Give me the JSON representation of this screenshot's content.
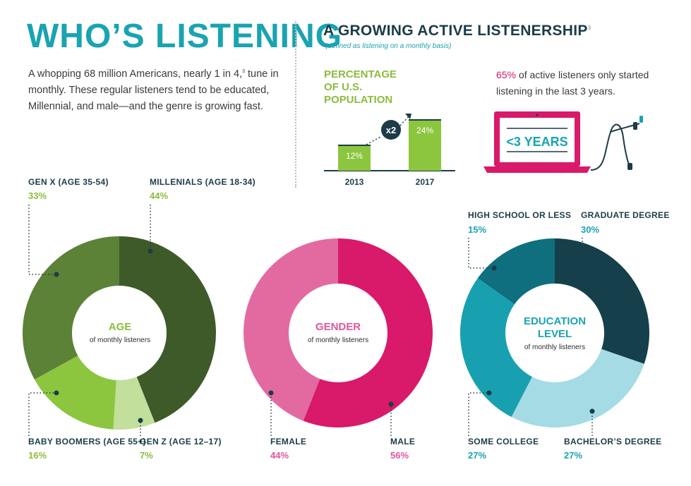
{
  "header": {
    "title": "WHO’S LISTENING",
    "intro_part1": "A whopping 68 million Americans, nearly 1 in 4,",
    "intro_sup": "3",
    "intro_part2": " tune in monthly. These regular listeners tend to be educated, Millennial, and male—and the genre is growing fast."
  },
  "growth": {
    "title": "A GROWING ACTIVE LISTENERSHIP",
    "title_sup": "3",
    "subtitle": "(defined as listening on a monthly basis)",
    "chart_title": "PERCENTAGE OF U.S. POPULATION",
    "multiplier": "x2",
    "listeners_pct": "65%",
    "listeners_text": " of active listeners only started listening in the last 3 years.",
    "laptop_text": "<3 YEARS"
  },
  "colors": {
    "teal": "#1aa3b1",
    "navy": "#1c3c48",
    "green_accent": "#8cbc3e",
    "pink": "#d9196a"
  },
  "chart_data": [
    {
      "type": "bar",
      "title": "PERCENTAGE OF U.S. POPULATION",
      "categories": [
        "2013",
        "2017"
      ],
      "values": [
        12,
        24
      ],
      "labels": [
        "12%",
        "24%"
      ],
      "annotation": "x2",
      "color": "#8cc63f"
    },
    {
      "type": "pie",
      "title": "AGE",
      "subtitle": "of monthly listeners",
      "title_color": "#8cbc3e",
      "slices": [
        {
          "label": "MILLENIALS (AGE 18-34)",
          "value": 44,
          "display": "44%",
          "color": "#3e5a29"
        },
        {
          "label": "GEN Z (AGE 12–17)",
          "value": 7,
          "display": "7%",
          "color": "#c2df9b"
        },
        {
          "label": "BABY BOOMERS (AGE 55+)",
          "value": 16,
          "display": "16%",
          "color": "#8cc63f"
        },
        {
          "label": "GEN X (AGE 35-54)",
          "value": 33,
          "display": "33%",
          "color": "#5b8237"
        }
      ],
      "value_color": "#8cbc3e"
    },
    {
      "type": "pie",
      "title": "GENDER",
      "subtitle": "of monthly listeners",
      "title_color": "#e0569a",
      "slices": [
        {
          "label": "MALE",
          "value": 56,
          "display": "56%",
          "color": "#d9196a"
        },
        {
          "label": "FEMALE",
          "value": 44,
          "display": "44%",
          "color": "#e36aa0"
        }
      ],
      "value_color": "#e0569a"
    },
    {
      "type": "pie",
      "title": "EDUCATION LEVEL",
      "subtitle": "of monthly listeners",
      "title_color": "#1aa3b1",
      "slices": [
        {
          "label": "GRADUATE DEGREE",
          "value": 30,
          "display": "30%",
          "color": "#163f4c"
        },
        {
          "label": "BACHELOR’S DEGREE",
          "value": 27,
          "display": "27%",
          "color": "#a4dbe4"
        },
        {
          "label": "SOME COLLEGE",
          "value": 27,
          "display": "27%",
          "color": "#18a0b0"
        },
        {
          "label": "HIGH SCHOOL OR LESS",
          "value": 15,
          "display": "15%",
          "color": "#0f6f7e"
        }
      ],
      "value_color": "#1aa3b1"
    }
  ]
}
